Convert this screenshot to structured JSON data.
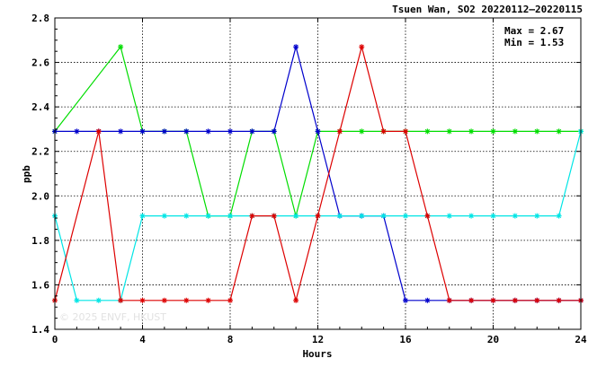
{
  "chart_data": {
    "type": "line",
    "title": "Tsuen Wan, SO2 20220112–20220115",
    "xlabel": "Hours",
    "ylabel": "ppb",
    "xlim": [
      0,
      24
    ],
    "ylim": [
      1.4,
      2.8
    ],
    "xticks": [
      0,
      4,
      8,
      12,
      16,
      20,
      24
    ],
    "yticks": [
      1.4,
      1.6,
      1.8,
      2.0,
      2.2,
      2.4,
      2.6,
      2.8
    ],
    "xtick_labels": [
      "0",
      "4",
      "8",
      "12",
      "16",
      "20",
      "24"
    ],
    "ytick_labels": [
      "1.4",
      "1.6",
      "1.8",
      "2.0",
      "2.2",
      "2.4",
      "2.6",
      "2.8"
    ],
    "grid": true,
    "stats": {
      "max_label": "Max = 2.67",
      "min_label": "Min = 1.53"
    },
    "watermark": "© 2025  ENVF, HKUST",
    "x": [
      0,
      1,
      2,
      3,
      4,
      5,
      6,
      7,
      8,
      9,
      10,
      11,
      12,
      13,
      14,
      15,
      16,
      17,
      18,
      19,
      20,
      21,
      22,
      23,
      24
    ],
    "series": [
      {
        "color": "#00dd00",
        "values": [
          2.29,
          null,
          null,
          2.67,
          2.29,
          2.29,
          2.29,
          1.91,
          1.91,
          2.29,
          2.29,
          1.91,
          2.29,
          2.29,
          2.29,
          2.29,
          2.29,
          2.29,
          2.29,
          2.29,
          2.29,
          2.29,
          2.29,
          2.29,
          2.29
        ]
      },
      {
        "color": "#0000cc",
        "values": [
          2.29,
          2.29,
          2.29,
          2.29,
          2.29,
          2.29,
          2.29,
          2.29,
          2.29,
          2.29,
          2.29,
          2.67,
          2.29,
          1.91,
          1.91,
          1.91,
          1.53,
          1.53,
          1.53,
          1.53,
          1.53,
          1.53,
          1.53,
          1.53,
          1.53
        ]
      },
      {
        "color": "#00e5e5",
        "values": [
          1.91,
          1.53,
          1.53,
          1.53,
          1.91,
          1.91,
          1.91,
          1.91,
          1.91,
          1.91,
          1.91,
          1.91,
          1.91,
          1.91,
          1.91,
          1.91,
          1.91,
          1.91,
          1.91,
          1.91,
          1.91,
          1.91,
          1.91,
          1.91,
          2.29
        ]
      },
      {
        "color": "#dd0000",
        "values": [
          1.53,
          null,
          2.29,
          1.53,
          1.53,
          1.53,
          1.53,
          1.53,
          1.53,
          1.91,
          1.91,
          1.53,
          1.91,
          2.29,
          2.67,
          2.29,
          2.29,
          1.91,
          1.53,
          1.53,
          1.53,
          1.53,
          1.53,
          1.53,
          1.53
        ]
      }
    ]
  }
}
